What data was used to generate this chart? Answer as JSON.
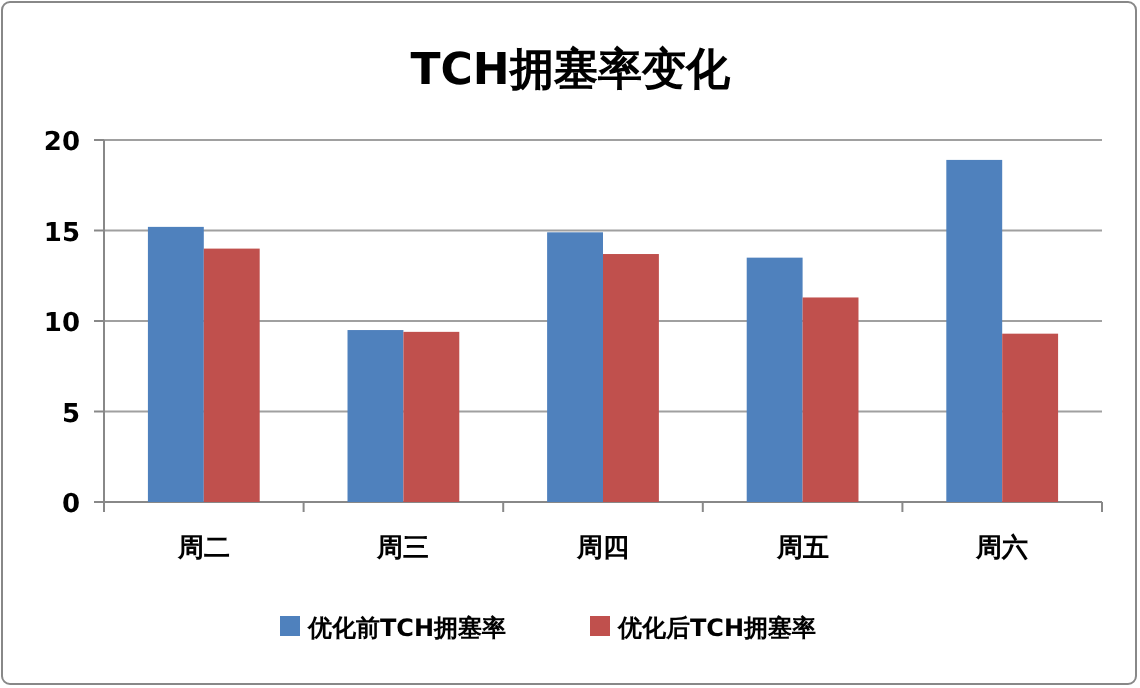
{
  "chart_data": {
    "type": "bar",
    "title": "TCH拥塞率变化",
    "categories": [
      "周二",
      "周三",
      "周四",
      "周五",
      "周六"
    ],
    "series": [
      {
        "name": "优化前TCH拥塞率",
        "color": "#4f81bd",
        "values": [
          15.2,
          9.5,
          14.9,
          13.5,
          18.9
        ]
      },
      {
        "name": "优化后TCH拥塞率",
        "color": "#c0504d",
        "values": [
          14.0,
          9.4,
          13.7,
          11.3,
          9.3
        ]
      }
    ],
    "ylim": [
      0,
      20
    ],
    "yticks": [
      0,
      5,
      10,
      15,
      20
    ],
    "grid": "y",
    "legend": "bottom"
  }
}
